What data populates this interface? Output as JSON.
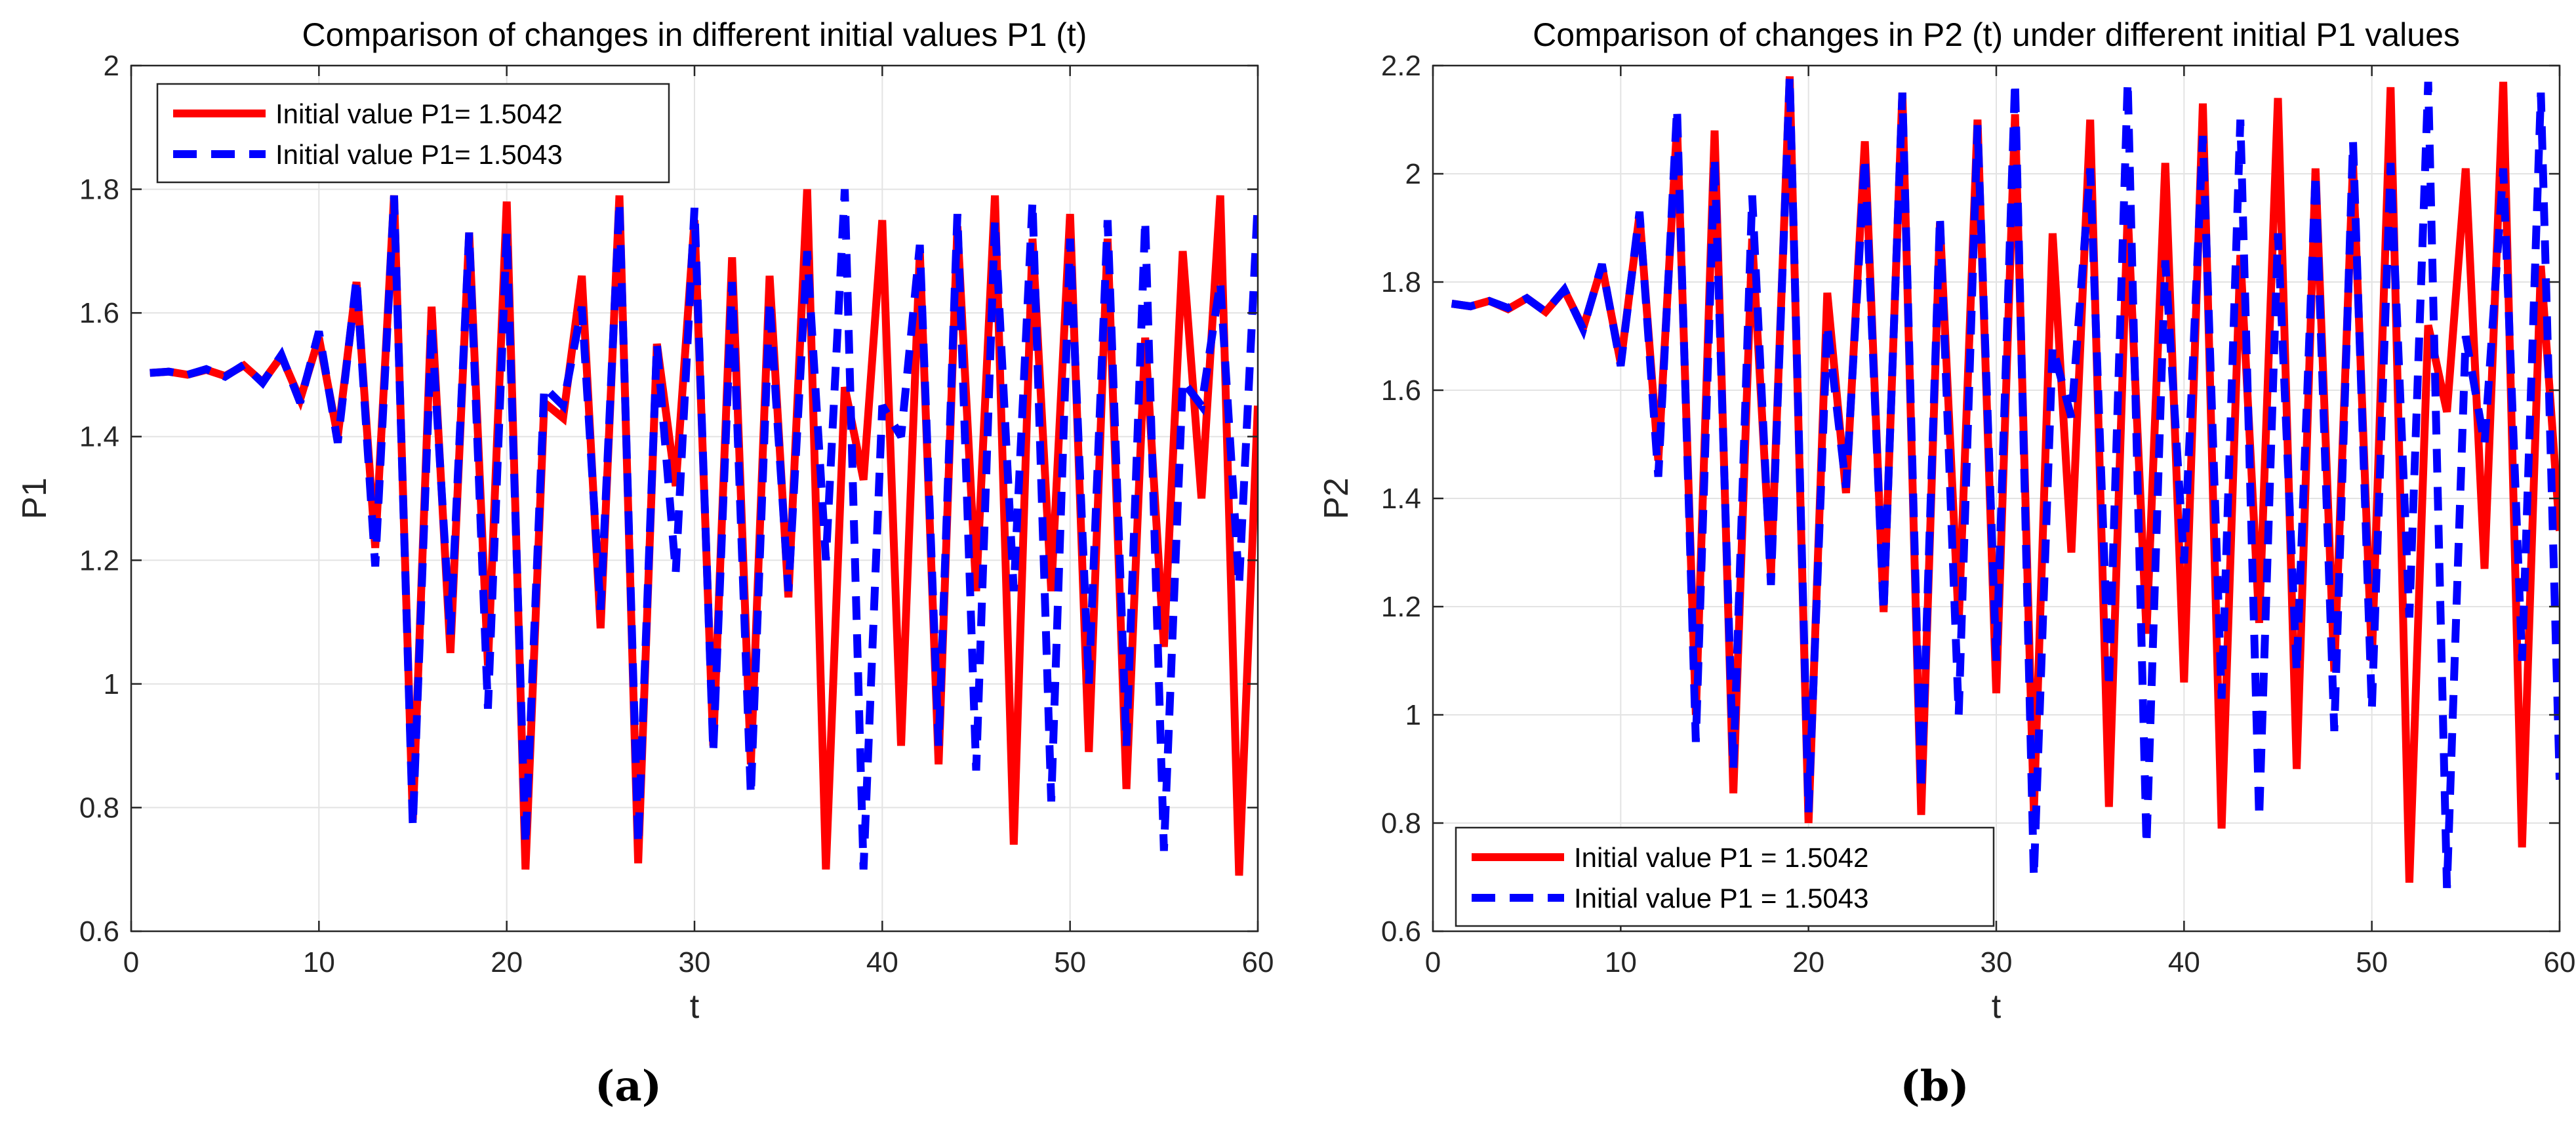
{
  "colors": {
    "red": "#ff0000",
    "blue": "#0000ff",
    "grid": "#e3e3e3",
    "axis": "#262626"
  },
  "captions": {
    "a": "(a)",
    "b": "(b)"
  },
  "chart_data": [
    {
      "id": "a",
      "type": "line",
      "title": "Comparison of changes in different initial values P1 (t)",
      "xlabel": "t",
      "ylabel": "P1",
      "xlim": [
        0,
        60
      ],
      "ylim": [
        0.6,
        2.0
      ],
      "xticks": [
        0,
        10,
        20,
        30,
        40,
        50,
        60
      ],
      "xtick_labels": [
        "0",
        "10",
        "20",
        "30",
        "40",
        "50",
        "60"
      ],
      "yticks": [
        0.6,
        0.8,
        1.0,
        1.2,
        1.4,
        1.6,
        1.8,
        2.0
      ],
      "ytick_labels": [
        "0.6",
        "0.8",
        "1",
        "1.2",
        "1.4",
        "1.6",
        "1.8",
        "2"
      ],
      "grid": true,
      "legend_position": "top-left",
      "x": [
        1,
        2,
        3,
        4,
        5,
        6,
        7,
        8,
        9,
        10,
        11,
        12,
        13,
        14,
        15,
        16,
        17,
        18,
        19,
        20,
        21,
        22,
        23,
        24,
        25,
        26,
        27,
        28,
        29,
        30,
        31,
        32,
        33,
        34,
        35,
        36,
        37,
        38,
        39,
        40,
        41,
        42,
        43,
        44,
        45,
        46,
        47,
        48,
        49,
        50,
        51,
        52,
        53,
        54,
        55,
        56,
        57,
        58,
        59,
        60
      ],
      "series": [
        {
          "name": "Initial value P1= 1.5042",
          "color": "#ff0000",
          "style": "solid",
          "values": [
            1.503,
            1.505,
            1.5,
            1.508,
            1.498,
            1.515,
            1.488,
            1.53,
            1.46,
            1.56,
            1.4,
            1.65,
            1.22,
            1.79,
            0.78,
            1.61,
            1.05,
            1.73,
            1.03,
            1.78,
            0.7,
            1.455,
            1.43,
            1.66,
            1.09,
            1.79,
            0.71,
            1.55,
            1.32,
            1.75,
            0.9,
            1.69,
            0.87,
            1.66,
            1.14,
            1.8,
            0.7,
            1.48,
            1.33,
            1.75,
            0.9,
            1.7,
            0.87,
            1.74,
            1.15,
            1.79,
            0.74,
            1.72,
            1.15,
            1.76,
            0.89,
            1.72,
            0.83,
            1.56,
            1.06,
            1.7,
            1.3,
            1.79,
            0.69,
            1.45
          ]
        },
        {
          "name": "Initial value P1= 1.5043",
          "color": "#0000ff",
          "style": "dashed",
          "values": [
            1.503,
            1.505,
            1.5,
            1.509,
            1.497,
            1.516,
            1.487,
            1.532,
            1.455,
            1.57,
            1.39,
            1.655,
            1.19,
            1.79,
            0.77,
            1.58,
            1.08,
            1.73,
            0.96,
            1.73,
            0.74,
            1.48,
            1.45,
            1.61,
            1.12,
            1.78,
            0.74,
            1.55,
            1.18,
            1.77,
            0.89,
            1.65,
            0.82,
            1.62,
            1.15,
            1.7,
            1.2,
            1.8,
            0.7,
            1.45,
            1.4,
            1.71,
            0.9,
            1.76,
            0.86,
            1.75,
            1.15,
            1.78,
            0.81,
            1.72,
            1.0,
            1.75,
            0.9,
            1.75,
            0.73,
            1.49,
            1.45,
            1.65,
            1.16,
            1.78
          ]
        }
      ]
    },
    {
      "id": "b",
      "type": "line",
      "title": "Comparison of changes in P2 (t) under different initial P1 values",
      "xlabel": "t",
      "ylabel": "P2",
      "xlim": [
        0,
        60
      ],
      "ylim": [
        0.6,
        2.2
      ],
      "xticks": [
        0,
        10,
        20,
        30,
        40,
        50,
        60
      ],
      "xtick_labels": [
        "0",
        "10",
        "20",
        "30",
        "40",
        "50",
        "60"
      ],
      "yticks": [
        0.6,
        0.8,
        1.0,
        1.2,
        1.4,
        1.6,
        1.8,
        2.0,
        2.2
      ],
      "ytick_labels": [
        "0.6",
        "0.8",
        "1",
        "1.2",
        "1.4",
        "1.6",
        "1.8",
        "2",
        "2.2"
      ],
      "grid": true,
      "legend_position": "bottom-left",
      "x": [
        1,
        2,
        3,
        4,
        5,
        6,
        7,
        8,
        9,
        10,
        11,
        12,
        13,
        14,
        15,
        16,
        17,
        18,
        19,
        20,
        21,
        22,
        23,
        24,
        25,
        26,
        27,
        28,
        29,
        30,
        31,
        32,
        33,
        34,
        35,
        36,
        37,
        38,
        39,
        40,
        41,
        42,
        43,
        44,
        45,
        46,
        47,
        48,
        49,
        50,
        51,
        52,
        53,
        54,
        55,
        56,
        57,
        58,
        59,
        60
      ],
      "series": [
        {
          "name": "Initial value P1 = 1.5042",
          "color": "#ff0000",
          "style": "solid",
          "values": [
            1.76,
            1.755,
            1.765,
            1.75,
            1.77,
            1.745,
            1.785,
            1.715,
            1.83,
            1.65,
            1.925,
            1.47,
            2.09,
            1.0,
            2.08,
            0.855,
            1.88,
            1.26,
            2.18,
            0.8,
            1.78,
            1.41,
            2.06,
            1.19,
            2.15,
            0.815,
            1.91,
            1.17,
            2.1,
            1.04,
            2.11,
            0.82,
            1.89,
            1.3,
            2.1,
            0.83,
            1.93,
            1.15,
            2.02,
            1.06,
            2.13,
            0.79,
            1.85,
            1.17,
            2.14,
            0.9,
            2.01,
            1.08,
            2.02,
            1.1,
            2.16,
            0.69,
            1.72,
            1.56,
            2.01,
            1.27,
            2.17,
            0.755,
            1.83,
            1.34
          ]
        },
        {
          "name": "Initial value P1 = 1.5043",
          "color": "#0000ff",
          "style": "dashed",
          "values": [
            1.76,
            1.755,
            1.765,
            1.752,
            1.77,
            1.745,
            1.786,
            1.713,
            1.833,
            1.645,
            1.93,
            1.44,
            2.12,
            0.95,
            2.03,
            0.9,
            1.96,
            1.24,
            2.18,
            0.82,
            1.72,
            1.42,
            2.03,
            1.19,
            2.15,
            0.86,
            1.92,
            1.0,
            2.09,
            1.1,
            2.17,
            0.7,
            1.68,
            1.55,
            2.01,
            1.05,
            2.17,
            0.76,
            1.84,
            1.28,
            2.07,
            1.03,
            2.1,
            0.81,
            1.89,
            1.08,
            2.0,
            0.97,
            2.06,
            1.01,
            2.02,
            1.18,
            2.17,
            0.68,
            1.7,
            1.5,
            2.01,
            1.1,
            2.15,
            0.88
          ]
        }
      ]
    }
  ]
}
